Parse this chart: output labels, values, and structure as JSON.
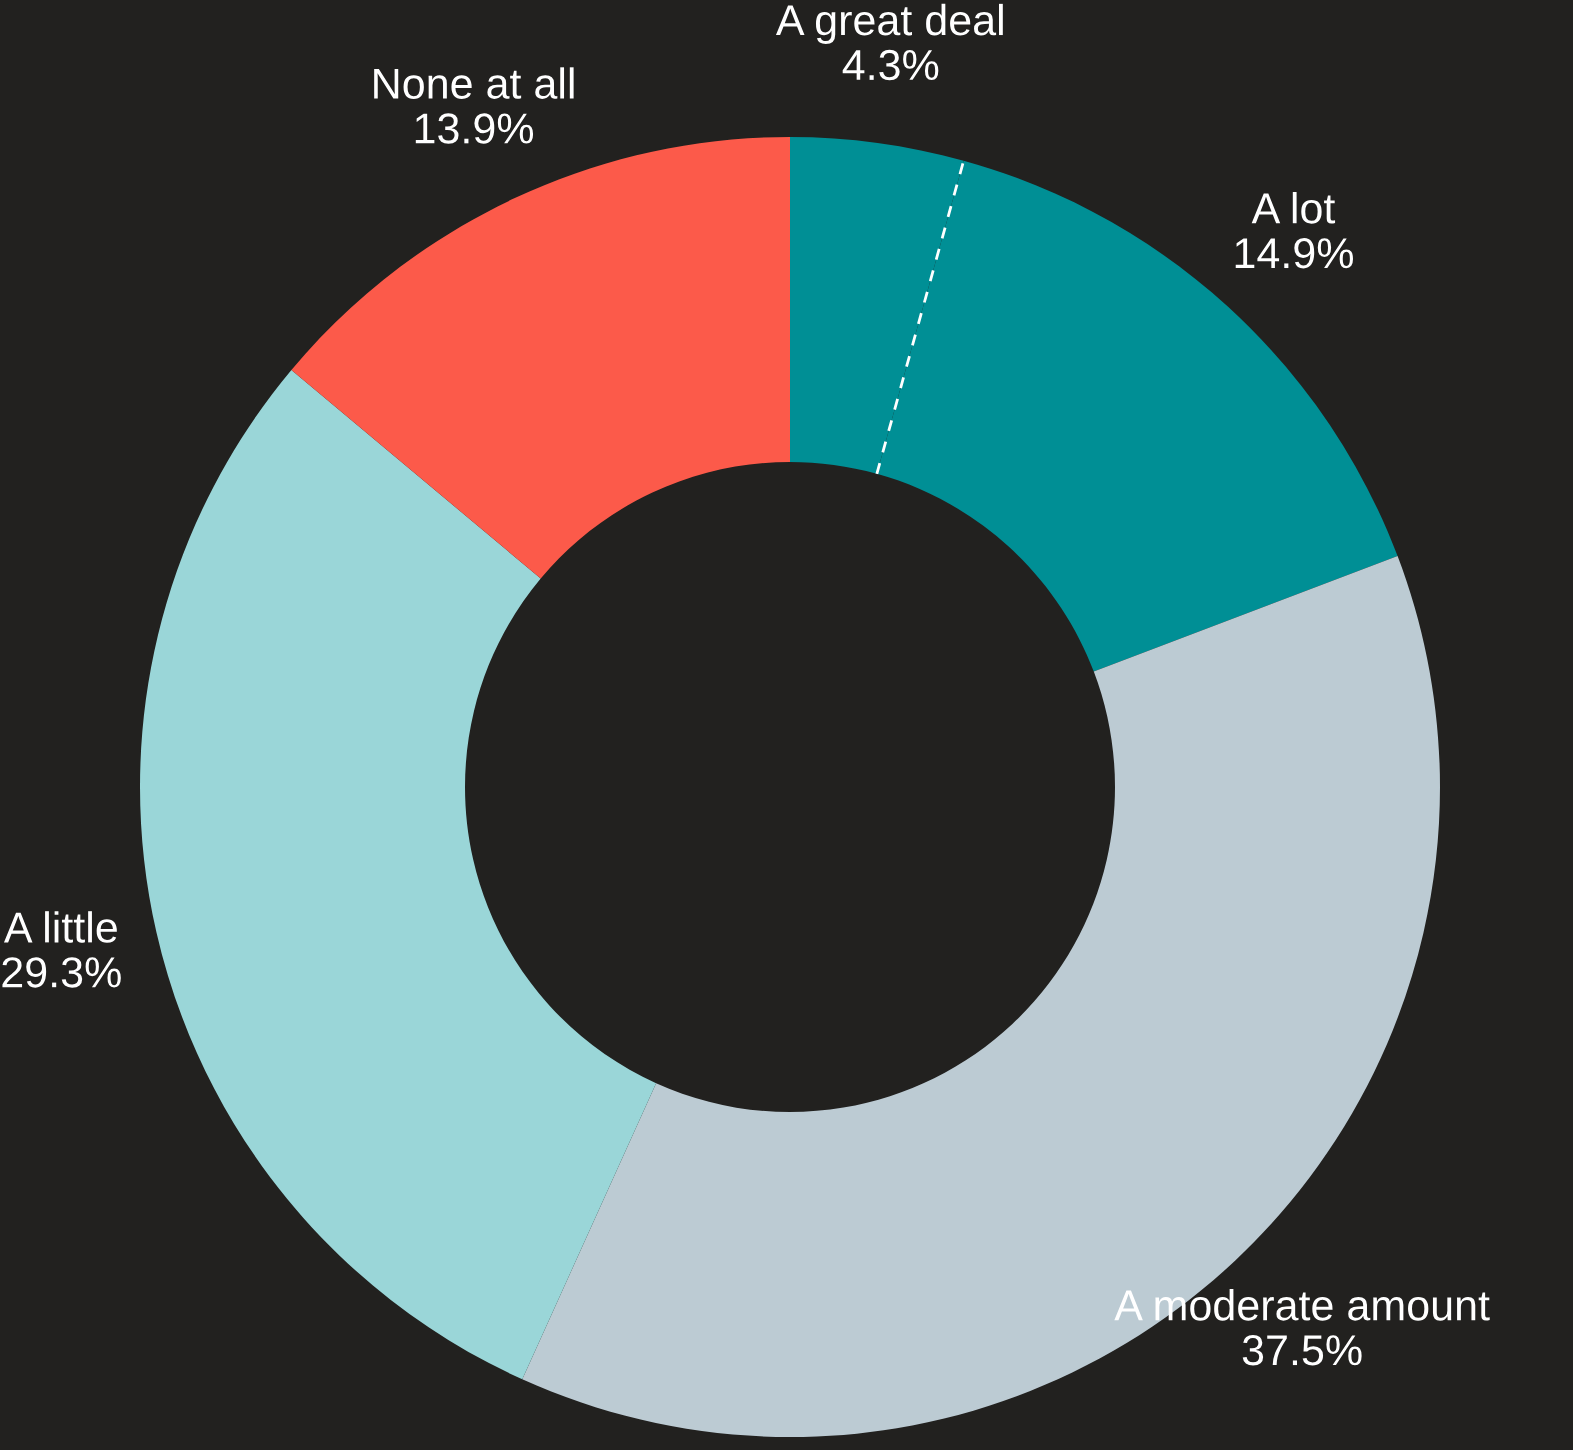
{
  "chart_data": {
    "type": "donut",
    "categories": [
      "A great deal",
      "A lot",
      "A moderate amount",
      "A little",
      "None at all"
    ],
    "values": [
      4.3,
      14.9,
      37.5,
      29.3,
      13.9
    ],
    "value_labels": [
      "4.3%",
      "14.9%",
      "37.5%",
      "29.3%",
      "13.9%"
    ],
    "colors": [
      "#008f95",
      "#008f95",
      "#bccbd3",
      "#9ad6d8",
      "#fc5a4a"
    ]
  }
}
